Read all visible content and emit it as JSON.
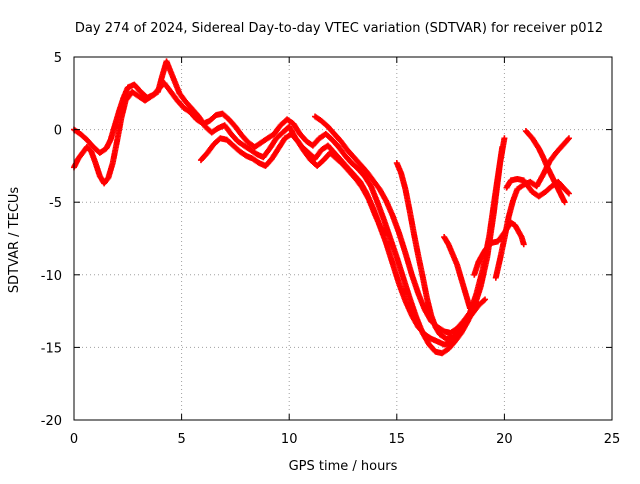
{
  "chart_data": {
    "type": "scatter",
    "title": "Day 274 of 2024, Sidereal Day-to-day VTEC variation (SDTVAR) for receiver p012",
    "xlabel": "GPS time / hours",
    "ylabel": "SDTVAR / TECUs",
    "xlim": [
      0,
      25
    ],
    "ylim": [
      -20,
      5
    ],
    "xticks": [
      0,
      5,
      10,
      15,
      20,
      25
    ],
    "yticks": [
      -20,
      -15,
      -10,
      -5,
      0,
      5
    ],
    "xtick_labels": [
      "0",
      "5",
      "10",
      "15",
      "20",
      "25"
    ],
    "ytick_labels": [
      "-20",
      "-15",
      "-10",
      "-5",
      "0",
      "5"
    ],
    "grid": true,
    "marker": "plus",
    "color": "#ff0000",
    "series": [
      {
        "points": [
          [
            0.0,
            0.0
          ],
          [
            0.3,
            -0.3
          ],
          [
            0.6,
            -0.7
          ],
          [
            0.9,
            -1.2
          ],
          [
            1.2,
            -1.6
          ],
          [
            1.5,
            -1.3
          ],
          [
            1.7,
            -0.7
          ],
          [
            1.9,
            0.3
          ],
          [
            2.1,
            1.3
          ],
          [
            2.3,
            2.2
          ],
          [
            2.5,
            2.9
          ],
          [
            2.8,
            3.1
          ],
          [
            3.1,
            2.6
          ],
          [
            3.4,
            2.2
          ],
          [
            3.7,
            2.4
          ],
          [
            4.0,
            2.9
          ],
          [
            4.2,
            3.2
          ],
          [
            4.5,
            2.6
          ],
          [
            4.8,
            2.0
          ],
          [
            5.1,
            1.5
          ],
          [
            5.4,
            1.2
          ],
          [
            5.7,
            0.7
          ],
          [
            6.0,
            0.4
          ],
          [
            6.3,
            0.6
          ],
          [
            6.6,
            1.0
          ],
          [
            6.9,
            1.1
          ],
          [
            7.2,
            0.7
          ],
          [
            7.5,
            0.2
          ],
          [
            7.8,
            -0.4
          ],
          [
            8.1,
            -0.9
          ],
          [
            8.4,
            -1.2
          ],
          [
            8.7,
            -0.9
          ],
          [
            9.0,
            -0.6
          ],
          [
            9.3,
            -0.3
          ],
          [
            9.6,
            0.3
          ],
          [
            9.9,
            0.7
          ],
          [
            10.2,
            0.4
          ],
          [
            10.5,
            -0.3
          ],
          [
            10.8,
            -0.8
          ],
          [
            11.1,
            -1.1
          ],
          [
            11.4,
            -0.6
          ],
          [
            11.7,
            -0.3
          ],
          [
            12.0,
            -0.7
          ],
          [
            12.3,
            -1.2
          ],
          [
            12.6,
            -1.8
          ],
          [
            12.9,
            -2.3
          ],
          [
            13.2,
            -2.7
          ],
          [
            13.5,
            -3.2
          ],
          [
            13.8,
            -3.9
          ],
          [
            14.1,
            -5.0
          ],
          [
            14.4,
            -6.2
          ],
          [
            14.7,
            -7.5
          ],
          [
            15.0,
            -8.8
          ],
          [
            15.3,
            -10.2
          ],
          [
            15.6,
            -11.6
          ],
          [
            15.9,
            -12.9
          ],
          [
            16.2,
            -14.0
          ],
          [
            16.5,
            -14.8
          ],
          [
            16.8,
            -15.3
          ],
          [
            17.1,
            -15.4
          ],
          [
            17.4,
            -15.1
          ],
          [
            17.7,
            -14.6
          ],
          [
            18.0,
            -14.0
          ],
          [
            18.3,
            -13.2
          ],
          [
            18.6,
            -12.2
          ],
          [
            18.9,
            -10.8
          ],
          [
            19.2,
            -8.8
          ],
          [
            19.5,
            -5.8
          ],
          [
            19.8,
            -2.3
          ],
          [
            20.0,
            -0.6
          ]
        ]
      },
      {
        "points": [
          [
            0.0,
            -2.6
          ],
          [
            0.2,
            -2.0
          ],
          [
            0.4,
            -1.6
          ],
          [
            0.6,
            -1.2
          ],
          [
            0.8,
            -1.5
          ],
          [
            1.0,
            -2.3
          ],
          [
            1.2,
            -3.2
          ],
          [
            1.4,
            -3.7
          ],
          [
            1.6,
            -3.3
          ],
          [
            1.8,
            -2.3
          ],
          [
            2.0,
            -0.8
          ],
          [
            2.2,
            0.8
          ],
          [
            2.4,
            2.0
          ],
          [
            2.7,
            2.6
          ],
          [
            3.0,
            2.3
          ],
          [
            3.3,
            2.0
          ],
          [
            3.6,
            2.3
          ],
          [
            3.9,
            2.6
          ],
          [
            4.1,
            3.7
          ],
          [
            4.3,
            4.7
          ],
          [
            4.6,
            3.6
          ],
          [
            4.9,
            2.5
          ],
          [
            5.2,
            1.9
          ],
          [
            5.5,
            1.4
          ],
          [
            5.8,
            0.9
          ],
          [
            6.1,
            0.2
          ],
          [
            6.4,
            -0.2
          ],
          [
            6.7,
            0.1
          ],
          [
            7.0,
            0.3
          ],
          [
            7.3,
            -0.3
          ],
          [
            7.6,
            -0.8
          ],
          [
            7.9,
            -1.1
          ],
          [
            8.2,
            -1.4
          ],
          [
            8.5,
            -1.7
          ],
          [
            8.8,
            -1.9
          ],
          [
            9.1,
            -1.3
          ],
          [
            9.4,
            -0.6
          ],
          [
            9.7,
            -0.2
          ],
          [
            10.0,
            0.2
          ],
          [
            10.3,
            -0.6
          ],
          [
            10.6,
            -1.2
          ],
          [
            10.9,
            -1.6
          ],
          [
            11.2,
            -2.0
          ],
          [
            11.5,
            -1.4
          ],
          [
            11.8,
            -1.1
          ],
          [
            12.1,
            -1.6
          ],
          [
            12.4,
            -2.1
          ],
          [
            12.7,
            -2.6
          ],
          [
            13.0,
            -3.1
          ],
          [
            13.3,
            -3.6
          ],
          [
            13.6,
            -4.4
          ],
          [
            13.9,
            -5.4
          ],
          [
            14.2,
            -6.6
          ],
          [
            14.5,
            -7.8
          ],
          [
            14.8,
            -9.2
          ],
          [
            15.1,
            -10.6
          ],
          [
            15.4,
            -11.8
          ],
          [
            15.7,
            -12.8
          ],
          [
            16.0,
            -13.6
          ],
          [
            16.3,
            -14.1
          ],
          [
            16.6,
            -14.4
          ],
          [
            16.9,
            -14.6
          ],
          [
            17.2,
            -14.8
          ],
          [
            17.5,
            -14.7
          ],
          [
            17.8,
            -14.3
          ],
          [
            18.1,
            -13.6
          ],
          [
            18.4,
            -12.6
          ],
          [
            18.7,
            -11.3
          ],
          [
            19.0,
            -9.6
          ],
          [
            19.3,
            -7.3
          ],
          [
            19.6,
            -4.2
          ],
          [
            19.9,
            -1.2
          ]
        ]
      },
      {
        "points": [
          [
            5.9,
            -2.1
          ],
          [
            6.2,
            -1.6
          ],
          [
            6.5,
            -1.0
          ],
          [
            6.8,
            -0.6
          ],
          [
            7.1,
            -0.7
          ],
          [
            7.4,
            -1.1
          ],
          [
            7.7,
            -1.5
          ],
          [
            8.0,
            -1.8
          ],
          [
            8.3,
            -2.0
          ],
          [
            8.6,
            -2.3
          ],
          [
            8.9,
            -2.5
          ],
          [
            9.2,
            -2.0
          ],
          [
            9.5,
            -1.3
          ],
          [
            9.8,
            -0.6
          ],
          [
            10.1,
            -0.3
          ],
          [
            10.4,
            -0.8
          ],
          [
            10.7,
            -1.5
          ],
          [
            11.0,
            -2.1
          ],
          [
            11.3,
            -2.5
          ],
          [
            11.6,
            -2.1
          ],
          [
            11.9,
            -1.6
          ],
          [
            12.2,
            -2.0
          ],
          [
            12.5,
            -2.4
          ],
          [
            12.8,
            -2.9
          ],
          [
            13.1,
            -3.4
          ],
          [
            13.4,
            -4.0
          ],
          [
            13.7,
            -4.8
          ],
          [
            14.0,
            -5.9
          ],
          [
            14.3,
            -6.9
          ],
          [
            14.6,
            -7.2
          ]
        ]
      },
      {
        "points": [
          [
            11.2,
            0.9
          ],
          [
            11.5,
            0.6
          ],
          [
            11.8,
            0.2
          ],
          [
            12.1,
            -0.3
          ],
          [
            12.4,
            -0.8
          ],
          [
            12.7,
            -1.4
          ],
          [
            13.0,
            -1.9
          ],
          [
            13.3,
            -2.4
          ],
          [
            13.6,
            -2.9
          ],
          [
            13.9,
            -3.5
          ],
          [
            14.2,
            -4.1
          ],
          [
            14.5,
            -4.9
          ],
          [
            14.8,
            -5.9
          ],
          [
            15.1,
            -7.1
          ],
          [
            15.4,
            -8.5
          ],
          [
            15.7,
            -10.0
          ],
          [
            16.0,
            -11.3
          ],
          [
            16.3,
            -12.4
          ],
          [
            16.6,
            -13.2
          ],
          [
            16.9,
            -13.6
          ],
          [
            17.2,
            -13.9
          ],
          [
            17.5,
            -14.0
          ],
          [
            17.8,
            -13.7
          ],
          [
            18.1,
            -13.2
          ],
          [
            18.4,
            -12.6
          ],
          [
            18.7,
            -11.9
          ]
        ]
      },
      {
        "points": [
          [
            15.0,
            -2.3
          ],
          [
            15.2,
            -3.0
          ],
          [
            15.4,
            -4.1
          ],
          [
            15.6,
            -5.6
          ],
          [
            15.8,
            -7.2
          ],
          [
            16.0,
            -8.7
          ],
          [
            16.2,
            -10.1
          ],
          [
            16.4,
            -11.6
          ],
          [
            16.6,
            -12.8
          ],
          [
            16.8,
            -13.6
          ],
          [
            17.0,
            -14.1
          ],
          [
            17.3,
            -14.4
          ],
          [
            17.6,
            -14.3
          ],
          [
            17.9,
            -13.9
          ],
          [
            18.2,
            -13.3
          ],
          [
            18.5,
            -12.7
          ],
          [
            18.8,
            -12.1
          ],
          [
            19.1,
            -11.7
          ]
        ]
      },
      {
        "points": [
          [
            17.2,
            -7.4
          ],
          [
            17.4,
            -7.9
          ],
          [
            17.6,
            -8.6
          ],
          [
            17.8,
            -9.3
          ],
          [
            18.0,
            -10.3
          ],
          [
            18.2,
            -11.3
          ],
          [
            18.4,
            -12.3
          ]
        ]
      },
      {
        "points": [
          [
            18.6,
            -10.0
          ],
          [
            18.8,
            -9.1
          ],
          [
            19.1,
            -8.3
          ],
          [
            19.4,
            -7.8
          ],
          [
            19.7,
            -7.7
          ],
          [
            20.0,
            -7.1
          ],
          [
            20.3,
            -6.4
          ],
          [
            20.5,
            -6.6
          ],
          [
            20.8,
            -7.4
          ],
          [
            20.9,
            -7.9
          ]
        ]
      },
      {
        "points": [
          [
            19.6,
            -10.2
          ],
          [
            19.8,
            -8.9
          ],
          [
            20.0,
            -7.5
          ],
          [
            20.2,
            -6.0
          ],
          [
            20.4,
            -4.9
          ],
          [
            20.6,
            -4.1
          ],
          [
            20.9,
            -3.8
          ],
          [
            21.2,
            -3.6
          ],
          [
            21.5,
            -3.9
          ],
          [
            21.8,
            -3.1
          ],
          [
            22.1,
            -2.2
          ],
          [
            22.4,
            -1.6
          ],
          [
            22.7,
            -1.1
          ],
          [
            23.0,
            -0.6
          ]
        ]
      },
      {
        "points": [
          [
            20.1,
            -4.0
          ],
          [
            20.3,
            -3.5
          ],
          [
            20.6,
            -3.4
          ],
          [
            20.9,
            -3.5
          ],
          [
            21.1,
            -3.9
          ],
          [
            21.3,
            -4.3
          ],
          [
            21.6,
            -4.6
          ],
          [
            21.9,
            -4.3
          ],
          [
            22.2,
            -3.9
          ],
          [
            22.5,
            -3.6
          ],
          [
            22.8,
            -4.1
          ],
          [
            23.0,
            -4.4
          ]
        ]
      },
      {
        "points": [
          [
            21.0,
            -0.1
          ],
          [
            21.3,
            -0.6
          ],
          [
            21.6,
            -1.3
          ],
          [
            21.8,
            -1.9
          ],
          [
            22.0,
            -2.6
          ],
          [
            22.2,
            -3.2
          ],
          [
            22.4,
            -3.8
          ],
          [
            22.6,
            -4.4
          ],
          [
            22.8,
            -5.0
          ]
        ]
      }
    ]
  }
}
